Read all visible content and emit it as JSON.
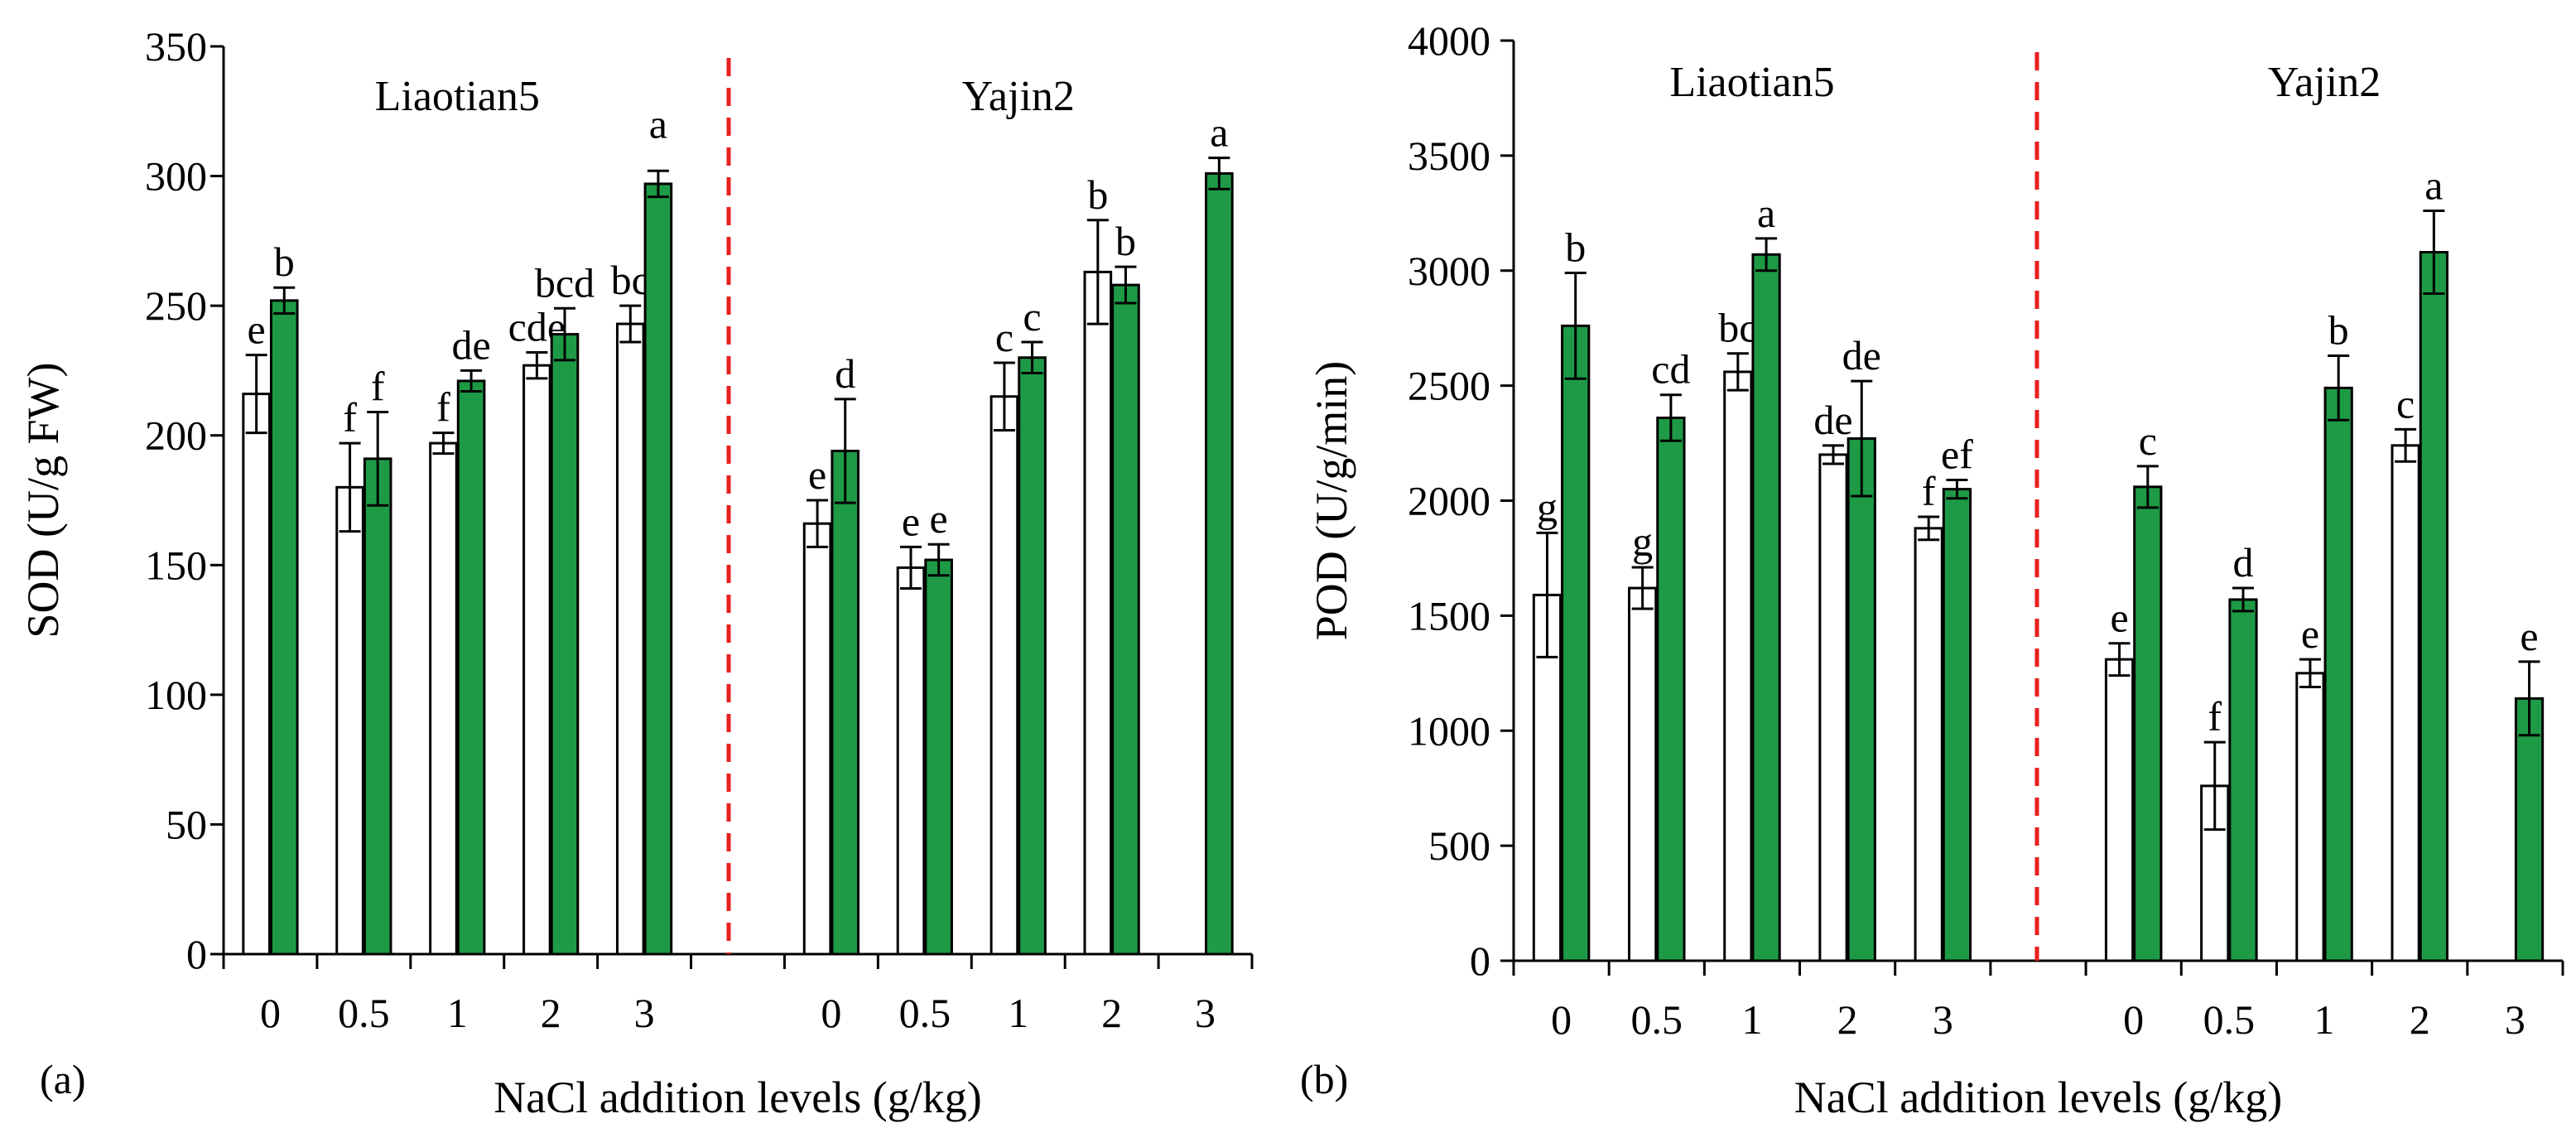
{
  "figure": {
    "xlabel_shared": "NaCl addition levels (g/kg)"
  },
  "colors": {
    "control_fill": "#ffffff",
    "salt_fill": "#1e9a46",
    "divider": "#e8201f",
    "axis": "#000000"
  },
  "chart_data": [
    {
      "panel_label": "(a)",
      "type": "bar",
      "title": "",
      "ylabel": "SOD (U/g FW)",
      "xlabel": "NaCl addition levels (g/kg)",
      "ylim": [
        0,
        350
      ],
      "yticks": [
        0,
        50,
        100,
        150,
        200,
        250,
        300,
        350
      ],
      "groups": [
        {
          "label": "Liaotian5",
          "categories": [
            "0",
            "0.5",
            "1",
            "2",
            "3"
          ],
          "series": [
            {
              "name": "white",
              "values": [
                216,
                180,
                197,
                227,
                243
              ],
              "errors": [
                15,
                17,
                4,
                5,
                7
              ],
              "letters": [
                "e",
                "f",
                "f",
                "cde",
                "bc"
              ]
            },
            {
              "name": "green",
              "values": [
                252,
                191,
                221,
                239,
                297
              ],
              "errors": [
                5,
                18,
                4,
                10,
                5
              ],
              "letters": [
                "b",
                "f",
                "de",
                "bcd",
                ""
              ]
            }
          ],
          "extra_letters": [
            "a"
          ]
        },
        {
          "label": "Yajin2",
          "categories": [
            "0",
            "0.5",
            "1",
            "2",
            "3"
          ],
          "series": [
            {
              "name": "white",
              "values": [
                166,
                149,
                215,
                263,
                null
              ],
              "errors": [
                9,
                8,
                13,
                20,
                null
              ],
              "letters": [
                "e",
                "e",
                "c",
                "b",
                ""
              ]
            },
            {
              "name": "green",
              "values": [
                194,
                152,
                230,
                258,
                301
              ],
              "errors": [
                20,
                6,
                6,
                7,
                6
              ],
              "letters": [
                "d",
                "e",
                "c",
                "b",
                "a"
              ]
            }
          ]
        }
      ]
    },
    {
      "panel_label": "(b)",
      "type": "bar",
      "title": "",
      "ylabel": "POD (U/g/min)",
      "xlabel": "NaCl addition levels (g/kg)",
      "ylim": [
        0,
        4000
      ],
      "yticks": [
        0,
        500,
        1000,
        1500,
        2000,
        2500,
        3000,
        3500,
        4000
      ],
      "groups": [
        {
          "label": "Liaotian5",
          "categories": [
            "0",
            "0.5",
            "1",
            "2",
            "3"
          ],
          "series": [
            {
              "name": "white",
              "values": [
                1590,
                1620,
                2560,
                2200,
                1880
              ],
              "errors": [
                270,
                90,
                80,
                40,
                50
              ],
              "letters": [
                "g",
                "g",
                "bc",
                "de",
                "f"
              ]
            },
            {
              "name": "green",
              "values": [
                2760,
                2360,
                3070,
                2270,
                2050
              ],
              "errors": [
                230,
                100,
                70,
                250,
                40
              ],
              "letters": [
                "b",
                "cd",
                "a",
                "de",
                "ef"
              ]
            }
          ]
        },
        {
          "label": "Yajin2",
          "categories": [
            "0",
            "0.5",
            "1",
            "2",
            "3"
          ],
          "series": [
            {
              "name": "white",
              "values": [
                1310,
                760,
                1250,
                2240,
                null
              ],
              "errors": [
                70,
                190,
                60,
                70,
                null
              ],
              "letters": [
                "e",
                "f",
                "e",
                "c",
                ""
              ]
            },
            {
              "name": "green",
              "values": [
                2060,
                1570,
                2490,
                3080,
                1140
              ],
              "errors": [
                90,
                50,
                140,
                180,
                160
              ],
              "letters": [
                "c",
                "d",
                "b",
                "a",
                "e"
              ]
            }
          ]
        }
      ]
    }
  ]
}
